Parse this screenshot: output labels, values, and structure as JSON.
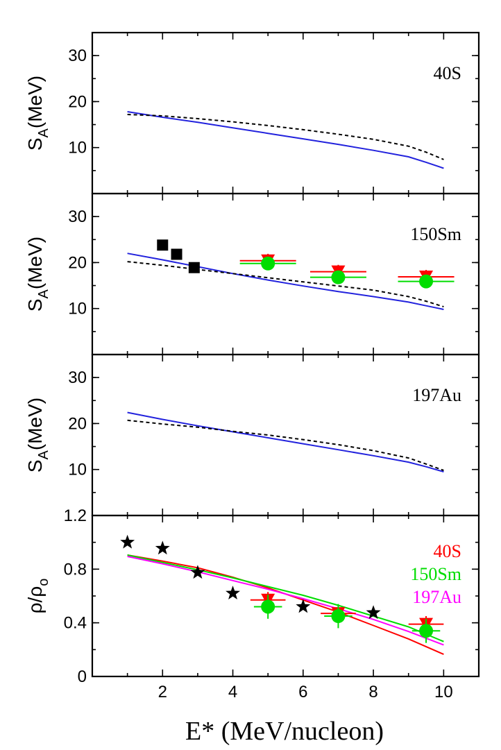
{
  "chart_data": {
    "type": "line",
    "xlabel": "E* (MeV/nucleon)",
    "xlim": [
      0,
      11
    ],
    "xticks": [
      2,
      4,
      6,
      8,
      10
    ],
    "panels": [
      {
        "label": "40S",
        "ylabel_main": "S",
        "ylabel_sub": "A",
        "ylabel_unit": "(MeV)",
        "ylim": [
          0,
          35
        ],
        "yticks": [
          10,
          20,
          30
        ],
        "series": [
          {
            "style": "solid",
            "color": "#2222dd",
            "x": [
              1,
              2,
              3,
              4,
              5,
              6,
              7,
              8,
              9,
              9.5,
              10
            ],
            "y": [
              17.8,
              16.6,
              15.5,
              14.3,
              13.1,
              11.9,
              10.7,
              9.4,
              8.0,
              6.8,
              5.5
            ]
          },
          {
            "style": "dashed",
            "color": "#000000",
            "x": [
              1,
              2,
              3,
              4,
              5,
              6,
              7,
              8,
              9,
              9.5,
              10
            ],
            "y": [
              17.2,
              16.9,
              16.3,
              15.6,
              14.8,
              13.9,
              12.9,
              11.8,
              10.3,
              9.0,
              7.4
            ]
          }
        ],
        "markers": []
      },
      {
        "label": "150Sm",
        "ylabel_main": "S",
        "ylabel_sub": "A",
        "ylabel_unit": "(MeV)",
        "ylim": [
          0,
          35
        ],
        "yticks": [
          10,
          20,
          30
        ],
        "series": [
          {
            "style": "solid",
            "color": "#2222dd",
            "x": [
              1,
              2,
              3,
              4,
              5,
              6,
              7,
              8,
              9,
              9.5,
              10
            ],
            "y": [
              22.0,
              20.6,
              19.1,
              17.6,
              16.2,
              14.9,
              13.7,
              12.6,
              11.4,
              10.6,
              9.8
            ]
          },
          {
            "style": "dashed",
            "color": "#000000",
            "x": [
              1,
              2,
              3,
              4,
              5,
              6,
              7,
              8,
              9,
              9.5,
              10
            ],
            "y": [
              20.2,
              19.4,
              18.5,
              17.6,
              16.7,
              15.8,
              14.9,
              14.0,
              12.6,
              11.6,
              10.4
            ]
          }
        ],
        "markers": [
          {
            "shape": "square",
            "color": "#000000",
            "x": [
              2.0,
              2.4,
              2.9
            ],
            "y": [
              23.8,
              21.8,
              18.9
            ]
          },
          {
            "shape": "triangle-down",
            "color": "#ff0000",
            "x": [
              5.0,
              7.0,
              9.5
            ],
            "y": [
              20.4,
              18.0,
              16.9
            ],
            "xerr": 0.8,
            "yerr": 1.5
          },
          {
            "shape": "circle",
            "color": "#00dd00",
            "x": [
              5.0,
              7.0,
              9.5
            ],
            "y": [
              19.8,
              16.8,
              15.9
            ],
            "xerr": 0.8,
            "yerr": 1.2
          }
        ]
      },
      {
        "label": "197Au",
        "ylabel_main": "S",
        "ylabel_sub": "A",
        "ylabel_unit": "(MeV)",
        "ylim": [
          0,
          35
        ],
        "yticks": [
          10,
          20,
          30
        ],
        "series": [
          {
            "style": "solid",
            "color": "#2222dd",
            "x": [
              1,
              2,
              3,
              4,
              5,
              6,
              7,
              8,
              9,
              9.5,
              10
            ],
            "y": [
              22.4,
              20.9,
              19.5,
              18.2,
              16.9,
              15.6,
              14.3,
              13.0,
              11.6,
              10.6,
              9.5
            ]
          },
          {
            "style": "dashed",
            "color": "#000000",
            "x": [
              1,
              2,
              3,
              4,
              5,
              6,
              7,
              8,
              9,
              9.5,
              10
            ],
            "y": [
              20.7,
              19.9,
              19.2,
              18.3,
              17.5,
              16.5,
              15.4,
              14.1,
              12.5,
              11.2,
              9.8
            ]
          }
        ],
        "markers": []
      },
      {
        "label": "",
        "ylabel_main": "ρ/ρ",
        "ylabel_sub": "o",
        "ylabel_unit": "",
        "ylim": [
          0,
          1.2
        ],
        "yticks": [
          0,
          0.4,
          0.8,
          1.2
        ],
        "ytick_labels": [
          "0",
          "0.4",
          "0.8",
          "1.2"
        ],
        "legend": [
          {
            "text": "40S",
            "color": "#ff0000"
          },
          {
            "text": "150Sm",
            "color": "#00dd00"
          },
          {
            "text": "197Au",
            "color": "#ff00ff"
          }
        ],
        "series": [
          {
            "style": "solid",
            "color": "#ff0000",
            "x": [
              1,
              2,
              3,
              4,
              5,
              6,
              7,
              8,
              9,
              10
            ],
            "y": [
              0.905,
              0.86,
              0.81,
              0.74,
              0.66,
              0.57,
              0.48,
              0.38,
              0.28,
              0.165
            ]
          },
          {
            "style": "solid",
            "color": "#00dd00",
            "x": [
              1,
              2,
              3,
              4,
              5,
              6,
              7,
              8,
              9,
              10
            ],
            "y": [
              0.905,
              0.85,
              0.795,
              0.735,
              0.67,
              0.605,
              0.53,
              0.45,
              0.37,
              0.26
            ]
          },
          {
            "style": "solid",
            "color": "#ff00ff",
            "x": [
              1,
              2,
              3,
              4,
              5,
              6,
              7,
              8,
              9,
              10
            ],
            "y": [
              0.895,
              0.84,
              0.78,
              0.715,
              0.65,
              0.58,
              0.505,
              0.425,
              0.335,
              0.235
            ]
          }
        ],
        "markers": [
          {
            "shape": "star",
            "color": "#000000",
            "x": [
              1,
              2,
              3,
              4,
              6,
              8
            ],
            "y": [
              1.0,
              0.955,
              0.775,
              0.62,
              0.52,
              0.475
            ]
          },
          {
            "shape": "triangle-down",
            "color": "#ff0000",
            "x": [
              5.0,
              7.0,
              9.5
            ],
            "y": [
              0.57,
              0.47,
              0.39
            ],
            "xerr": 0.5,
            "yerr": 0.06
          },
          {
            "shape": "circle",
            "color": "#00dd00",
            "x": [
              5.0,
              7.0,
              9.5
            ],
            "y": [
              0.52,
              0.45,
              0.34
            ],
            "xerr": 0.4,
            "yerr": 0.09
          }
        ]
      }
    ]
  }
}
